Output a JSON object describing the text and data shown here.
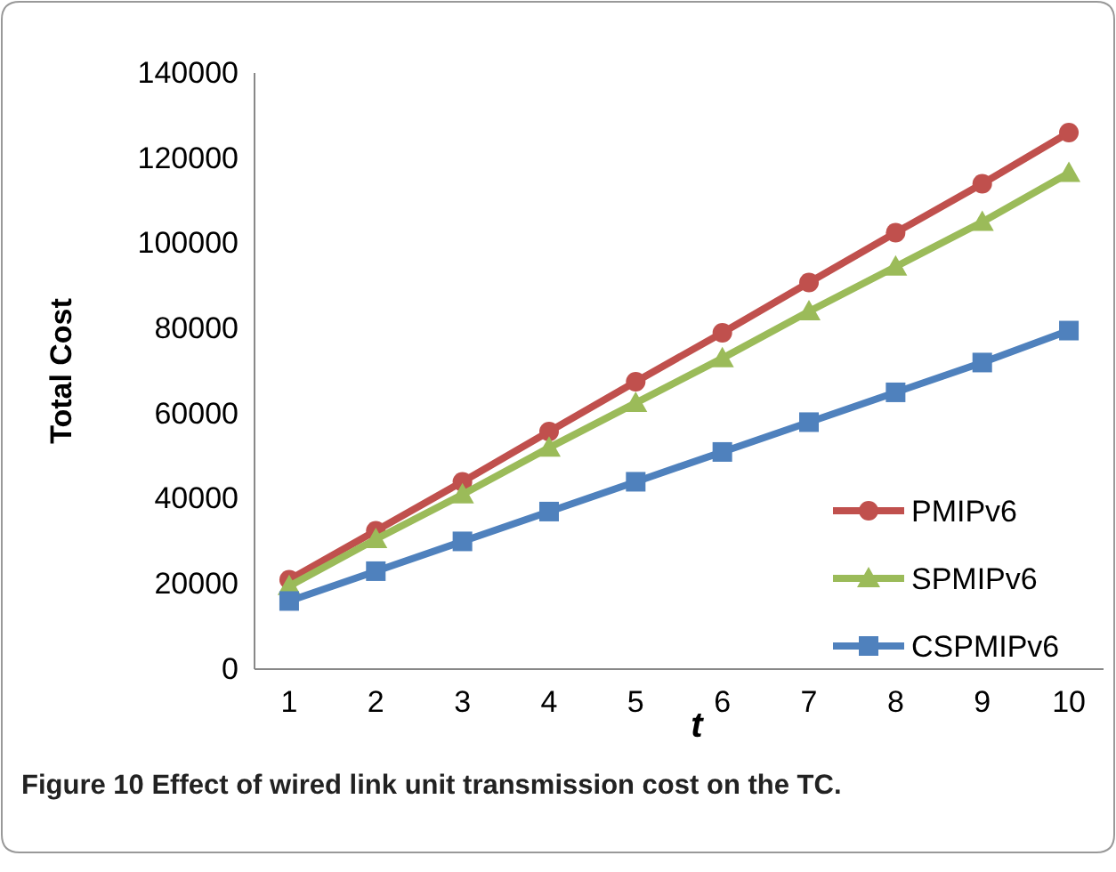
{
  "chart_data": {
    "type": "line",
    "xlabel": "t",
    "ylabel": "Total Cost",
    "annotations": [
      "Figure 10 Effect of wired link unit transmission cost on the TC."
    ],
    "x": [
      1,
      2,
      3,
      4,
      5,
      6,
      7,
      8,
      9,
      10
    ],
    "xlim": [
      0.6,
      10.4
    ],
    "xticks": [
      1,
      2,
      3,
      4,
      5,
      6,
      7,
      8,
      9,
      10
    ],
    "ylim": [
      0,
      140000
    ],
    "yticks": [
      0,
      20000,
      40000,
      60000,
      80000,
      100000,
      120000,
      140000
    ],
    "grid": false,
    "legend": "bottom right",
    "series": [
      {
        "name": "PMIPv6",
        "color": "#c0504d",
        "marker": "circle",
        "values": [
          21000,
          32500,
          44000,
          55800,
          67500,
          79000,
          90800,
          102500,
          114000,
          126000
        ]
      },
      {
        "name": "SPMIPv6",
        "color": "#9bbb59",
        "marker": "triangle",
        "values": [
          19500,
          30500,
          41000,
          52000,
          62500,
          73000,
          84000,
          94500,
          105000,
          116500
        ]
      },
      {
        "name": "CSPMIPv6",
        "color": "#4f81bd",
        "marker": "square",
        "values": [
          16000,
          23000,
          30000,
          37000,
          44000,
          51000,
          58000,
          65000,
          72000,
          79500
        ]
      }
    ]
  }
}
